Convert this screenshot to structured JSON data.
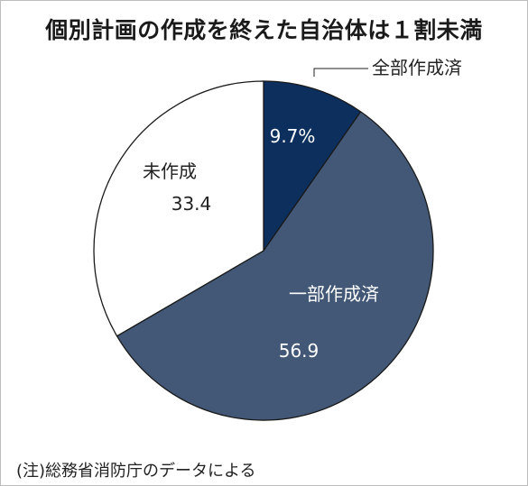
{
  "title": "個別計画の作成を終えた自治体は１割未満",
  "note": "(注)総務省消防庁のデータによる",
  "colors": {
    "complete": "#0c2f5e",
    "partial": "#425876",
    "none": "#ffffff",
    "outline": "#1a1a1a"
  },
  "chart_data": {
    "type": "pie",
    "title": "個別計画の作成を終えた自治体は１割未満",
    "slices": [
      {
        "label": "全部作成済",
        "value": 9.7,
        "value_label": "9.7%",
        "color": "#0c2f5e"
      },
      {
        "label": "一部作成済",
        "value": 56.9,
        "value_label": "56.9",
        "color": "#425876"
      },
      {
        "label": "未作成",
        "value": 33.4,
        "value_label": "33.4",
        "color": "#ffffff"
      }
    ]
  }
}
